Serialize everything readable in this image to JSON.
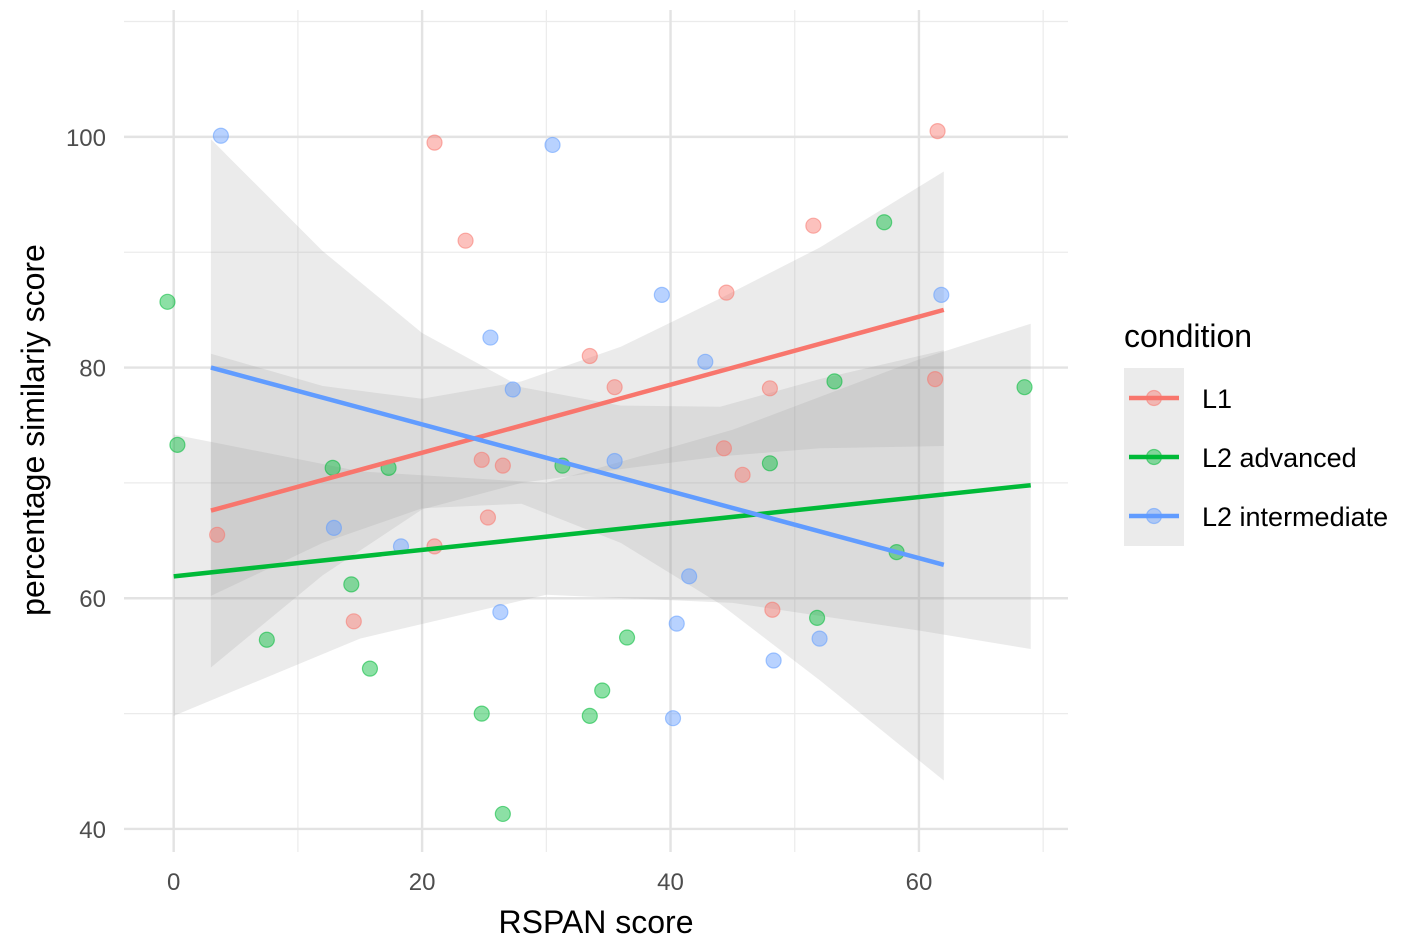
{
  "chart_data": {
    "type": "scatter",
    "title": "",
    "xlabel": "RSPAN score",
    "ylabel": "percentage similariy score",
    "xlim": [
      -4,
      72
    ],
    "ylim": [
      38,
      111
    ],
    "xticks": [
      0,
      20,
      40,
      60
    ],
    "yticks": [
      40,
      60,
      80,
      100
    ],
    "x_minor": [
      10,
      30,
      50,
      70
    ],
    "y_minor": [
      50,
      70,
      90,
      110
    ],
    "grid": true,
    "legend": {
      "title": "condition",
      "position": "right"
    },
    "series": [
      {
        "name": "L1",
        "color": "#F8766D",
        "points": [
          [
            3.5,
            65.5
          ],
          [
            14.5,
            58
          ],
          [
            21,
            64.5
          ],
          [
            21,
            99.5
          ],
          [
            23.5,
            91
          ],
          [
            24.8,
            72
          ],
          [
            25.3,
            67
          ],
          [
            26.5,
            71.5
          ],
          [
            33.5,
            81
          ],
          [
            35.5,
            78.3
          ],
          [
            44.3,
            73
          ],
          [
            44.5,
            86.5
          ],
          [
            45.8,
            70.7
          ],
          [
            48,
            78.2
          ],
          [
            48.2,
            59
          ],
          [
            51.5,
            92.3
          ],
          [
            61.3,
            79
          ],
          [
            61.5,
            100.5
          ]
        ],
        "fit": {
          "x": [
            3,
            62
          ],
          "y": [
            67.6,
            85.0
          ]
        },
        "band": {
          "x": [
            3,
            12,
            20,
            28,
            36,
            44,
            52,
            62
          ],
          "lower": [
            54.0,
            62.0,
            67.7,
            70.0,
            71.2,
            72.3,
            73.0,
            73.2
          ],
          "upper": [
            81.2,
            78.4,
            77.3,
            78.8,
            81.8,
            86.0,
            90.4,
            97.0
          ]
        }
      },
      {
        "name": "L2 advanced",
        "color": "#00BA38",
        "points": [
          [
            -0.5,
            85.7
          ],
          [
            0.3,
            73.3
          ],
          [
            7.5,
            56.4
          ],
          [
            12.8,
            71.3
          ],
          [
            14.3,
            61.2
          ],
          [
            15.8,
            53.9
          ],
          [
            17.3,
            71.3
          ],
          [
            24.8,
            50
          ],
          [
            26.5,
            41.3
          ],
          [
            31.3,
            71.5
          ],
          [
            33.5,
            49.8
          ],
          [
            34.5,
            52
          ],
          [
            36.5,
            56.6
          ],
          [
            48,
            71.7
          ],
          [
            51.8,
            58.3
          ],
          [
            53.2,
            78.8
          ],
          [
            57.2,
            92.6
          ],
          [
            58.2,
            64
          ],
          [
            68.5,
            78.3
          ]
        ],
        "fit": {
          "x": [
            0,
            69
          ],
          "y": [
            61.9,
            69.8
          ]
        },
        "band": {
          "x": [
            0,
            15,
            30,
            45,
            60,
            69
          ],
          "lower": [
            49.8,
            56.5,
            60.3,
            59.6,
            57.2,
            55.6
          ],
          "upper": [
            74.2,
            71.0,
            70.0,
            74.6,
            80.7,
            83.8
          ]
        }
      },
      {
        "name": "L2 intermediate",
        "color": "#619CFF",
        "points": [
          [
            3.8,
            100.1
          ],
          [
            12.9,
            66.1
          ],
          [
            18.3,
            64.5
          ],
          [
            25.5,
            82.6
          ],
          [
            26.3,
            58.8
          ],
          [
            27.3,
            78.1
          ],
          [
            30.5,
            99.3
          ],
          [
            35.5,
            71.9
          ],
          [
            39.3,
            86.3
          ],
          [
            40.2,
            49.6
          ],
          [
            40.5,
            57.8
          ],
          [
            41.5,
            61.9
          ],
          [
            42.8,
            80.5
          ],
          [
            48.3,
            54.6
          ],
          [
            52,
            56.5
          ],
          [
            61.8,
            86.3
          ]
        ],
        "fit": {
          "x": [
            3,
            62
          ],
          "y": [
            80.0,
            62.9
          ]
        },
        "band": {
          "x": [
            3,
            12,
            20,
            28,
            36,
            44,
            52,
            62
          ],
          "lower": [
            60.2,
            64.8,
            67.8,
            68.2,
            64.8,
            59.5,
            52.9,
            44.2
          ],
          "upper": [
            99.8,
            90.1,
            83.0,
            78.3,
            76.7,
            76.6,
            79.0,
            81.5
          ]
        }
      }
    ]
  }
}
